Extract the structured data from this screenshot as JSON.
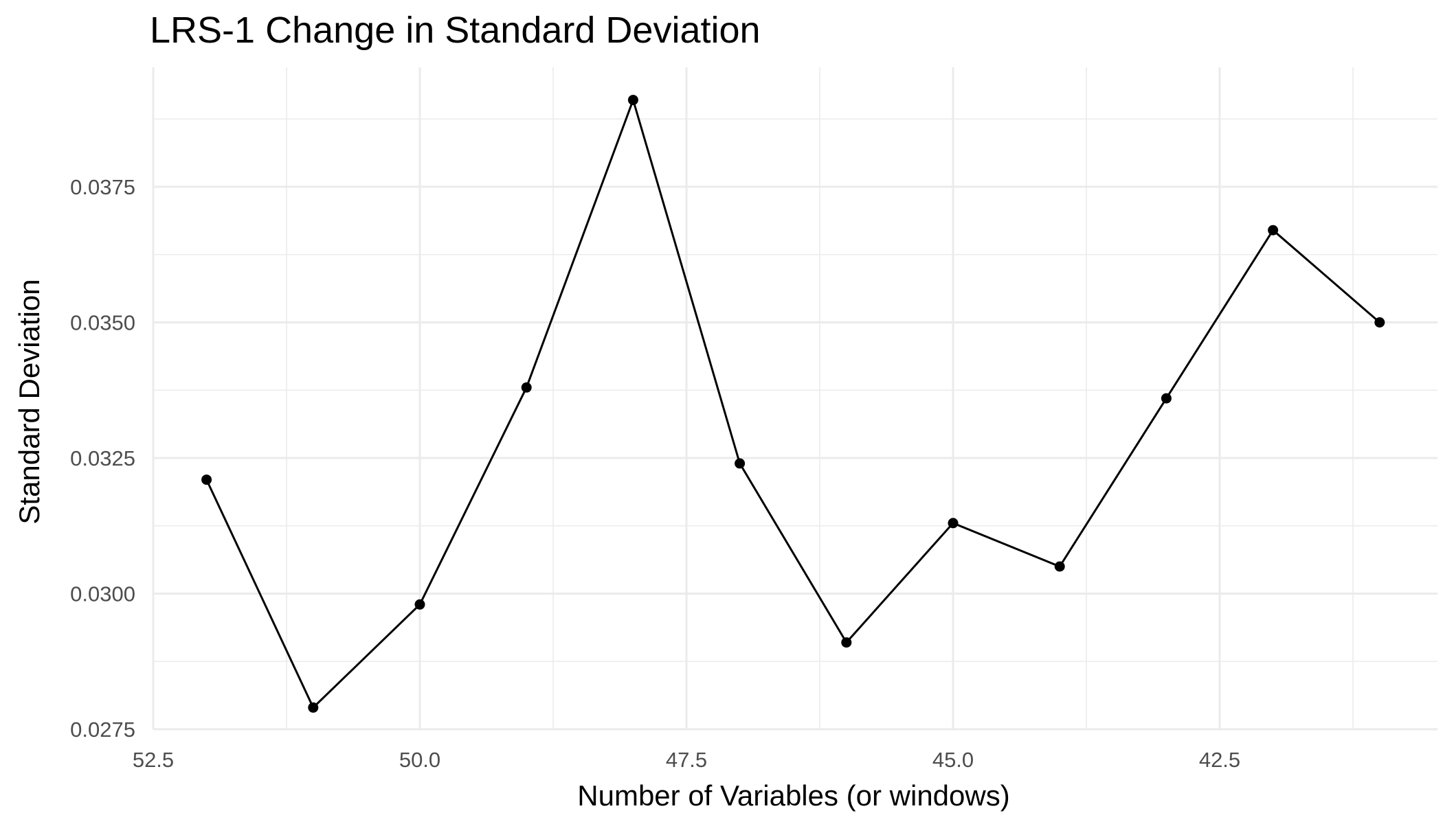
{
  "chart_data": {
    "type": "line",
    "title": "LRS-1 Change in Standard Deviation",
    "xlabel": "Number of Variables (or windows)",
    "ylabel": "Standard Deviation",
    "x_reversed": true,
    "xlim": [
      52.5,
      40.0
    ],
    "ylim": [
      0.0275,
      0.039
    ],
    "x_ticks": [
      52.5,
      50.0,
      47.5,
      45.0,
      42.5
    ],
    "x_tick_labels": [
      "52.5",
      "50.0",
      "47.5",
      "45.0",
      "42.5"
    ],
    "y_ticks": [
      0.0275,
      0.03,
      0.0325,
      0.035,
      0.0375
    ],
    "y_tick_labels": [
      "0.0275",
      "0.0300",
      "0.0325",
      "0.0350",
      "0.0375"
    ],
    "grid": true,
    "series": [
      {
        "x": [
          52,
          51,
          50,
          49,
          48,
          47,
          46,
          45,
          44,
          43,
          42,
          41
        ],
        "y": [
          0.0321,
          0.0279,
          0.0298,
          0.0338,
          0.0391,
          0.0324,
          0.0291,
          0.0313,
          0.0305,
          0.0336,
          0.0367,
          0.035
        ]
      }
    ],
    "colors": {
      "line": "#000000",
      "grid": "#ebebeb",
      "tick_text": "#4d4d4d"
    }
  }
}
